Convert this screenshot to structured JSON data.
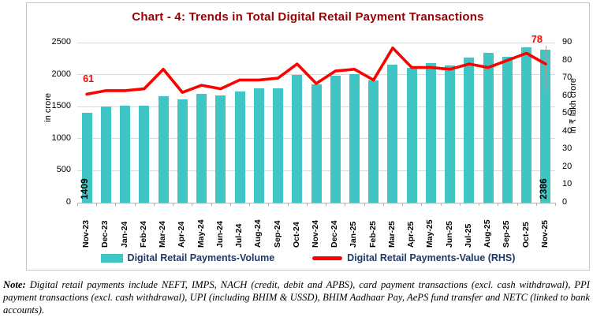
{
  "title": "Chart - 4: Trends in Total Digital Retail Payment Transactions",
  "note": {
    "label": "Note:",
    "text": " Digital retail payments include NEFT, IMPS, NACH (credit, debit and APBS), card payment transactions (excl. cash withdrawal), PPI payment transactions (excl. cash withdrawal), UPI (including BHIM & USSD), BHIM Aadhaar Pay, AePS fund transfer and NETC (linked to bank accounts)."
  },
  "chart_data": {
    "type": "combo-bar-line",
    "categories": [
      "Nov-23",
      "Dec-23",
      "Jan-24",
      "Feb-24",
      "Mar-24",
      "Apr-24",
      "May-24",
      "Jun-24",
      "Jul-24",
      "Aug-24",
      "Sep-24",
      "Oct-24",
      "Nov-24",
      "Dec-24",
      "Jan-25",
      "Feb-25",
      "Mar-25",
      "Apr-25",
      "May-25",
      "Jun-25",
      "Jul-25",
      "Aug-25",
      "Sep-25",
      "Oct-25",
      "Nov-25"
    ],
    "series": [
      {
        "name": "Digital Retail Payments-Volume",
        "type": "bar",
        "axis": "left",
        "color": "#40C5C5",
        "values": [
          1409,
          1500,
          1520,
          1510,
          1660,
          1615,
          1700,
          1670,
          1740,
          1790,
          1790,
          2000,
          1845,
          1980,
          2005,
          1905,
          2160,
          2100,
          2185,
          2140,
          2265,
          2345,
          2280,
          2420,
          2386
        ]
      },
      {
        "name": "Digital Retail Payments-Value (RHS)",
        "type": "line",
        "axis": "right",
        "color": "#FE0000",
        "values": [
          61,
          63,
          63,
          64,
          75,
          62,
          66,
          64,
          69,
          69,
          70,
          78,
          67,
          74,
          75,
          69,
          87,
          76,
          76,
          75,
          78,
          76,
          80,
          84,
          78
        ]
      }
    ],
    "left_axis": {
      "label": "in crore",
      "min": 0,
      "max": 2500,
      "step": 500
    },
    "right_axis": {
      "label": "in ₹ lakh crore",
      "min": 0,
      "max": 90,
      "step": 10
    },
    "annotations": {
      "first_bar_label": "1409",
      "last_bar_label": "2386",
      "first_line_label": "61",
      "last_line_label": "78"
    },
    "grid": true,
    "legend_position": "bottom"
  },
  "colors": {
    "bar": "#40C5C5",
    "line": "#FE0000",
    "title": "#990000",
    "gridline": "#d9d9d9"
  }
}
